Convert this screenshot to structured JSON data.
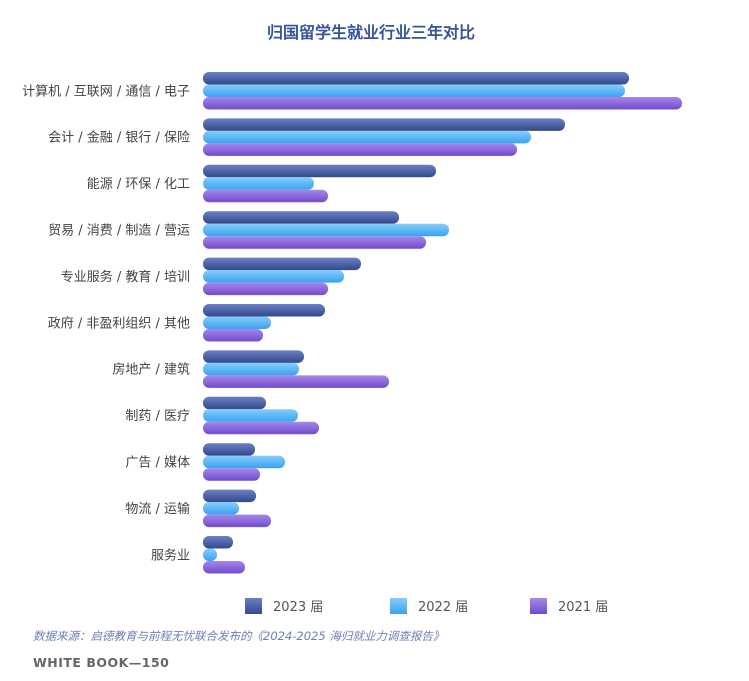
{
  "chart_data": {
    "type": "bar",
    "orientation": "horizontal",
    "title": "归国留学生就业行业三年对比",
    "categories": [
      "计算机 / 互联网 / 通信 / 电子",
      "会计 / 金融 / 银行 / 保险",
      "能源 / 环保 / 化工",
      "贸易 / 消费 / 制造 / 营运",
      "专业服务 / 教育 / 培训",
      "政府 / 非盈利组织 / 其他",
      "房地产 / 建筑",
      "制药 / 医疗",
      "广告 / 媒体",
      "物流 / 运输",
      "服务业"
    ],
    "series": [
      {
        "name": "2023 届",
        "color": "#4a62a8",
        "values": [
          426,
          362,
          233,
          196,
          158,
          122,
          101,
          63,
          52,
          53,
          30
        ]
      },
      {
        "name": "2022 届",
        "color": "#5bb6f7",
        "values": [
          422,
          328,
          111,
          246,
          141,
          68,
          96,
          95,
          82,
          36,
          14
        ]
      },
      {
        "name": "2021 届",
        "color": "#8a66db",
        "values": [
          479,
          314,
          125,
          223,
          125,
          60,
          186,
          116,
          57,
          68,
          42
        ]
      }
    ],
    "xlim": [
      0,
      500
    ],
    "grid": false,
    "legend": "bottom"
  },
  "source_note": "数据来源：启德教育与前程无忧联合发布的《2024-2025 海归就业力调查报告》",
  "footer": "WHITE BOOK—150"
}
